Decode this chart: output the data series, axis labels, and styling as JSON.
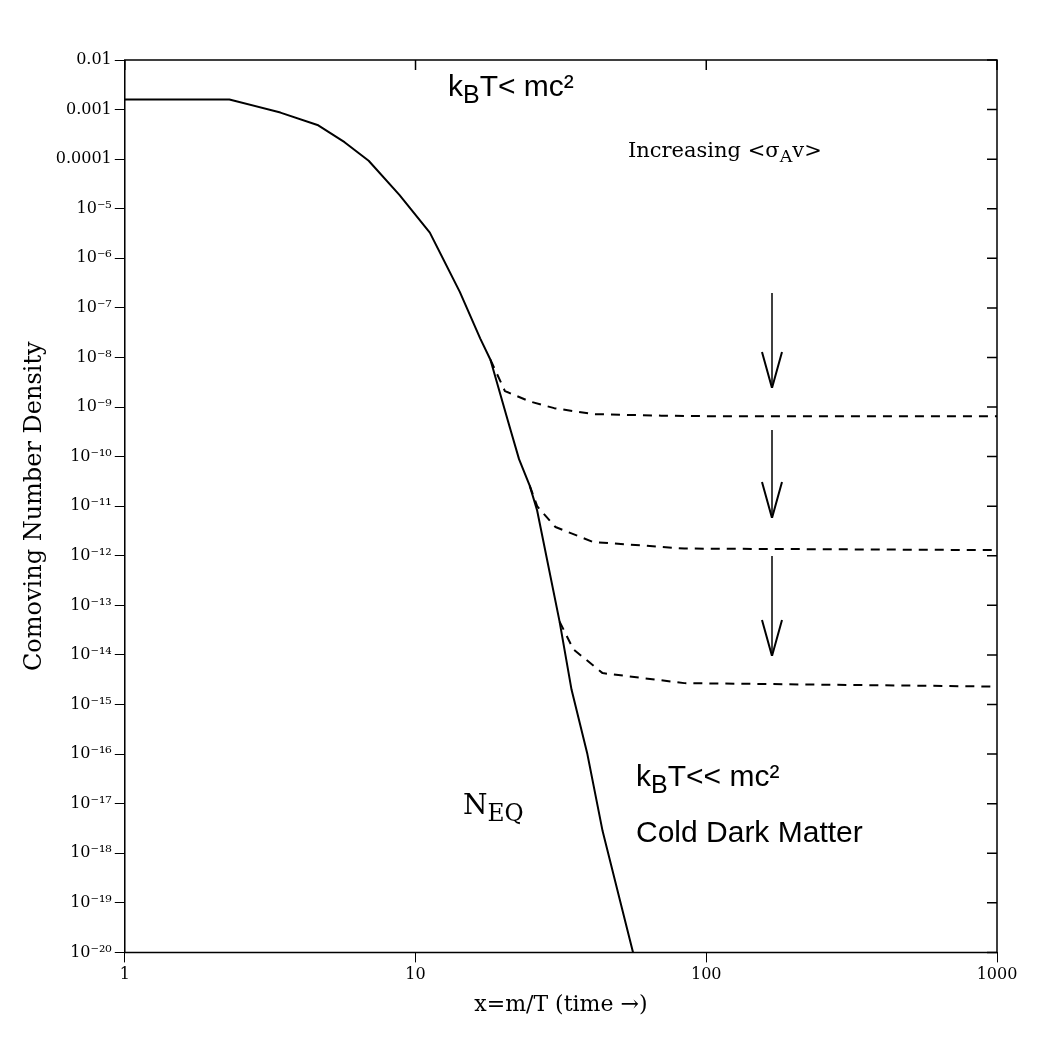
{
  "chart_data": {
    "type": "line",
    "xlabel": "x=m/T (time →)",
    "ylabel": "Comoving Number Density",
    "log": "xy",
    "legend": false,
    "marker": "none",
    "xlim": [
      1,
      1000
    ],
    "xticks": [
      1,
      10,
      100,
      1000
    ],
    "ylim": [
      1e-20,
      0.01
    ],
    "yticks": [
      0.01,
      0.001,
      0.0001,
      {
        "value": 1e-05,
        "label": "10⁻⁵"
      },
      {
        "value": 1e-06,
        "label": "10⁻⁶"
      },
      {
        "value": 1e-07,
        "label": "10⁻⁷"
      },
      {
        "value": 1e-08,
        "label": "10⁻⁸"
      },
      {
        "value": 1e-09,
        "label": "10⁻⁹"
      },
      {
        "value": 1e-10,
        "label": "10⁻¹⁰"
      },
      {
        "value": 1e-11,
        "label": "10⁻¹¹"
      },
      {
        "value": 1e-12,
        "label": "10⁻¹²"
      },
      {
        "value": 1e-13,
        "label": "10⁻¹³"
      },
      {
        "value": 1e-14,
        "label": "10⁻¹⁴"
      },
      {
        "value": 1e-15,
        "label": "10⁻¹⁵"
      },
      {
        "value": 1e-16,
        "label": "10⁻¹⁶"
      },
      {
        "value": 1e-17,
        "label": "10⁻¹⁷"
      },
      {
        "value": 1e-18,
        "label": "10⁻¹⁸"
      },
      {
        "value": 1e-19,
        "label": "10⁻¹⁹"
      },
      {
        "value": 1e-20,
        "label": "10⁻²⁰"
      }
    ],
    "series": [
      {
        "name": "N$_{EQ}$",
        "color": "#000000",
        "line_style": "solid",
        "x": [
          1,
          2.29,
          3.43,
          4.6,
          5.7,
          6.9,
          8.8,
          11.2,
          14.2,
          16.7,
          18.1,
          21.3,
          22.7,
          24.7,
          26.2,
          31.3,
          34.4,
          39,
          44,
          50,
          56
        ],
        "values": [
          0.0016,
          0.0016,
          0.00087,
          0.00049,
          0.00022,
          9.3e-05,
          1.9e-05,
          3.3e-06,
          2.1e-07,
          2.4e-08,
          9e-09,
          3.2e-10,
          8.9e-11,
          2.6e-11,
          8.2e-12,
          4.7e-14,
          2e-15,
          1e-16,
          2.8e-18,
          1.4e-19,
          1e-20
        ]
      },
      {
        "color": "#000000",
        "line_style": "dashed",
        "x": [
          18.1,
          20.3,
          24.7,
          30,
          40.8,
          70,
          116,
          1000
        ],
        "values": [
          9e-09,
          2.1e-09,
          1.3e-09,
          9.5e-10,
          7.2e-10,
          6.7e-10,
          6.5e-10,
          6.5e-10
        ]
      },
      {
        "color": "#000000",
        "line_style": "dashed",
        "x": [
          24.7,
          26.2,
          30.3,
          40.8,
          84,
          1000
        ],
        "values": [
          2.6e-11,
          1e-11,
          3.8e-12,
          1.9e-12,
          1.4e-12,
          1.3e-12
        ]
      },
      {
        "color": "#000000",
        "line_style": "dashed",
        "x": [
          31.3,
          34.9,
          44,
          84,
          1000
        ],
        "values": [
          4.7e-14,
          1.3e-14,
          4.3e-15,
          2.7e-15,
          2.3e-15
        ]
      }
    ],
    "annotations": [
      "k$_{B}$T< mc²",
      "Increasing <σ$_{A}$v>",
      "k$_{B}$T<< mc²",
      "Cold Dark Matter"
    ]
  }
}
